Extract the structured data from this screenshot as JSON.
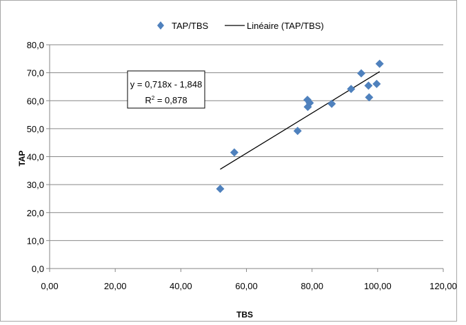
{
  "chart_data": {
    "type": "scatter",
    "xlabel": "TBS",
    "ylabel": "TAP",
    "xlim": [
      0,
      120
    ],
    "ylim": [
      0,
      80
    ],
    "x_ticks": [
      0,
      20,
      40,
      60,
      80,
      100,
      120
    ],
    "y_ticks": [
      0,
      10,
      20,
      30,
      40,
      50,
      60,
      70,
      80
    ],
    "x_tick_labels": [
      "0,00",
      "20,00",
      "40,00",
      "60,00",
      "80,00",
      "100,00",
      "120,00"
    ],
    "y_tick_labels": [
      "0,0",
      "10,0",
      "20,0",
      "30,0",
      "40,0",
      "50,0",
      "60,0",
      "70,0",
      "80,0"
    ],
    "grid": "horizontal",
    "legend_position": "top",
    "series": [
      {
        "name": "TAP/TBS",
        "marker": "diamond",
        "color": "#4F81BD",
        "points": [
          {
            "x": 52.0,
            "y": 28.5
          },
          {
            "x": 56.3,
            "y": 41.5
          },
          {
            "x": 75.6,
            "y": 49.2
          },
          {
            "x": 78.6,
            "y": 60.3
          },
          {
            "x": 78.7,
            "y": 57.8
          },
          {
            "x": 79.3,
            "y": 59.2
          },
          {
            "x": 86.0,
            "y": 58.9
          },
          {
            "x": 91.9,
            "y": 64.2
          },
          {
            "x": 95.0,
            "y": 69.8
          },
          {
            "x": 97.2,
            "y": 65.4
          },
          {
            "x": 97.4,
            "y": 61.2
          },
          {
            "x": 99.7,
            "y": 66.0
          },
          {
            "x": 100.6,
            "y": 73.2
          }
        ]
      }
    ],
    "trendline": {
      "name": "Linéaire (TAP/TBS)",
      "type": "linear",
      "slope": 0.718,
      "intercept": -1.848,
      "x_range": [
        52.0,
        100.6
      ],
      "color": "#000000"
    },
    "annotation": {
      "equation": "y = 0,718x - 1,848",
      "r2_prefix": "R",
      "r2_sup": "2",
      "r2_suffix": " = 0,878"
    }
  }
}
